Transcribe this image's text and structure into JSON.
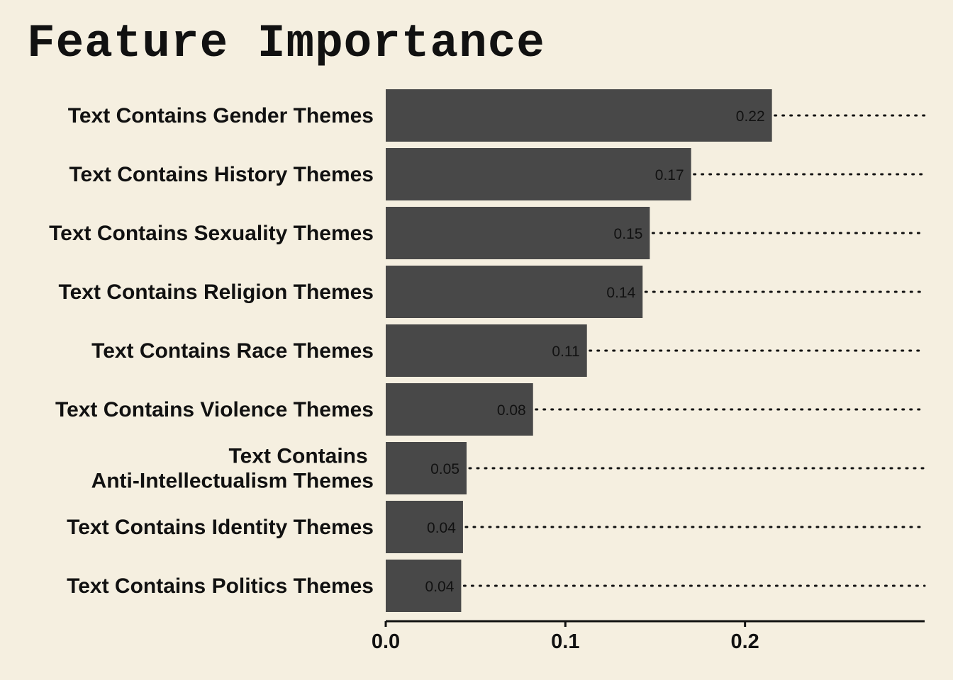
{
  "chart_data": {
    "type": "bar",
    "orientation": "horizontal",
    "title": "Feature Importance",
    "xlabel": "",
    "ylabel": "",
    "categories": [
      "Text Contains Gender Themes",
      "Text Contains History Themes",
      "Text Contains Sexuality Themes",
      "Text Contains Religion Themes",
      "Text Contains Race Themes",
      "Text Contains Violence Themes",
      "Text Contains \nAnti-Intellectualism Themes",
      "Text Contains Identity Themes",
      "Text Contains Politics Themes"
    ],
    "values": [
      0.215,
      0.17,
      0.147,
      0.143,
      0.112,
      0.082,
      0.045,
      0.043,
      0.042
    ],
    "data_labels": [
      "0.22",
      "0.17",
      "0.15",
      "0.14",
      "0.11",
      "0.08",
      "0.05",
      "0.04",
      "0.04"
    ],
    "xlim": [
      0,
      0.3
    ],
    "xticks": [
      0.0,
      0.1,
      0.2
    ],
    "xtick_labels": [
      "0.0",
      "0.1",
      "0.2"
    ],
    "grid": false,
    "legend": "none",
    "colors": {
      "bar": "#484848",
      "background": "#f5efe0",
      "text": "#111111",
      "leader": "#111111"
    }
  }
}
